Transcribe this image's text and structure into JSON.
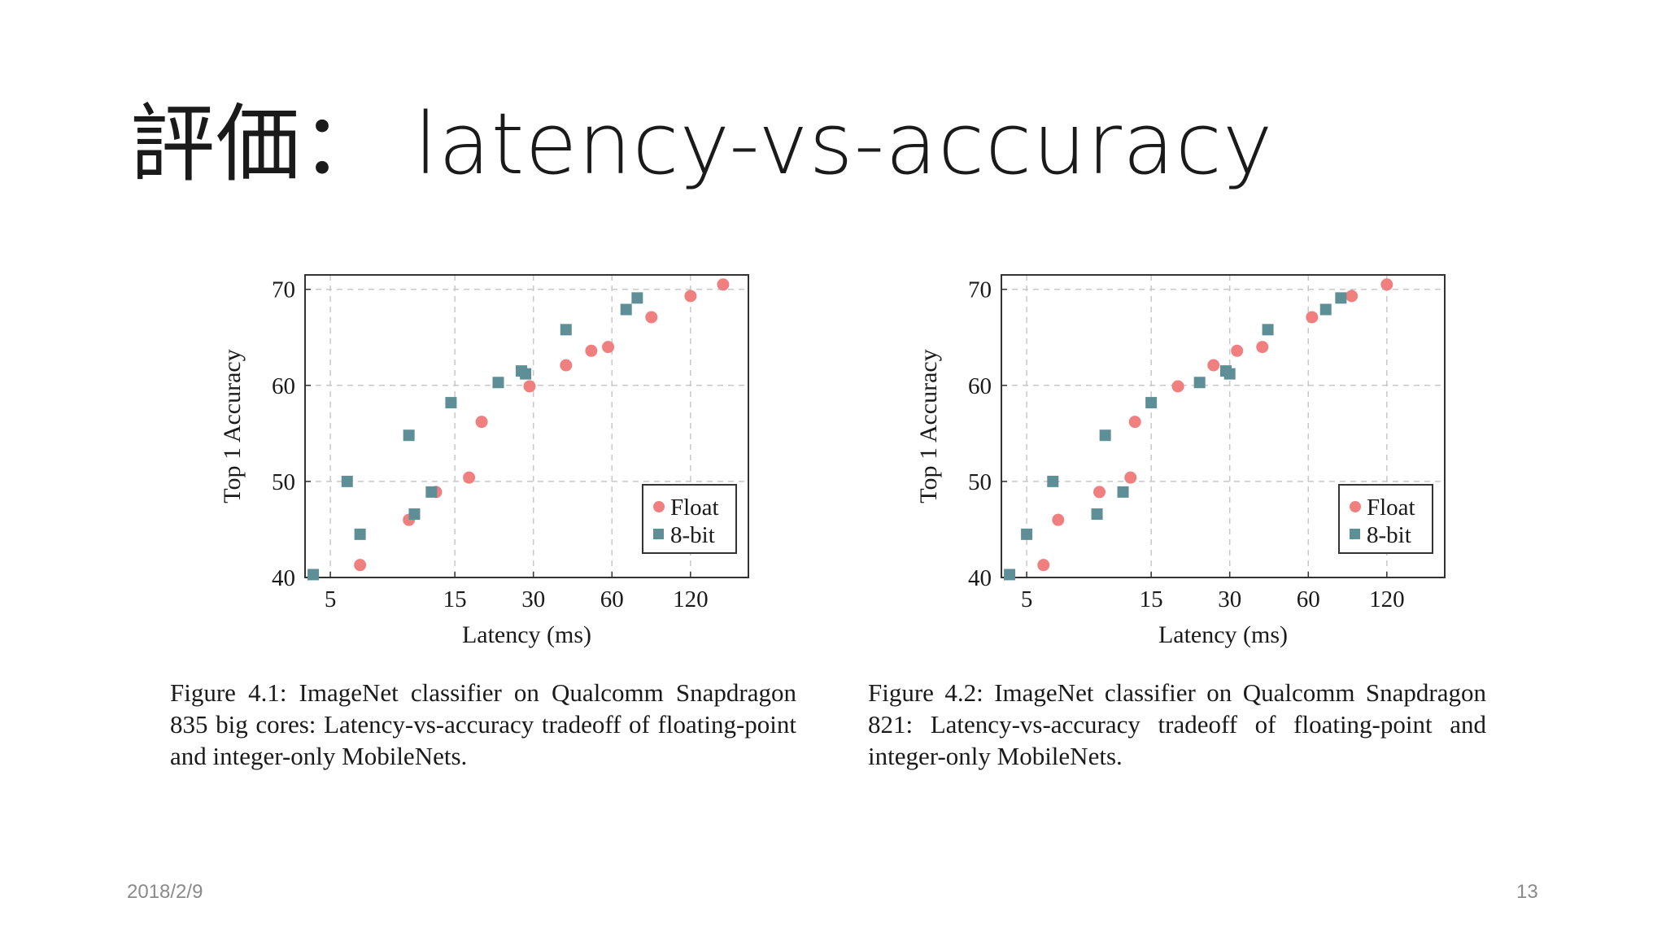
{
  "slide": {
    "title": "評価： latency-vs-accuracy",
    "date": "2018/2/9",
    "page_number": "13"
  },
  "colors": {
    "float": "#f08080",
    "int8": "#5f8f96",
    "grid": "#c8c8c8",
    "frame": "#333333"
  },
  "chart_data": [
    {
      "type": "scatter",
      "xlabel": "Latency (ms)",
      "ylabel": "Top 1 Accuracy",
      "xscale": "log",
      "xlim": [
        4,
        200
      ],
      "ylim": [
        40,
        71.5
      ],
      "xticks": [
        5,
        15,
        30,
        60,
        120
      ],
      "yticks": [
        40,
        50,
        60,
        70
      ],
      "legend_position": "lower-right",
      "series": [
        {
          "name": "Float",
          "marker": "circle",
          "points": [
            [
              6.5,
              41.3
            ],
            [
              10,
              46.0
            ],
            [
              12.7,
              48.9
            ],
            [
              17,
              50.4
            ],
            [
              19,
              56.2
            ],
            [
              29,
              59.9
            ],
            [
              40,
              62.1
            ],
            [
              50,
              63.6
            ],
            [
              58,
              64.0
            ],
            [
              85,
              67.1
            ],
            [
              120,
              69.3
            ],
            [
              160,
              70.5
            ]
          ]
        },
        {
          "name": "8-bit",
          "marker": "square",
          "points": [
            [
              4.3,
              40.3
            ],
            [
              5.8,
              50.0
            ],
            [
              6.5,
              44.5
            ],
            [
              10,
              54.8
            ],
            [
              10.5,
              46.6
            ],
            [
              12.2,
              48.9
            ],
            [
              14.5,
              58.2
            ],
            [
              22,
              60.3
            ],
            [
              27,
              61.5
            ],
            [
              28,
              61.2
            ],
            [
              40,
              65.8
            ],
            [
              68,
              67.9
            ],
            [
              75,
              69.1
            ]
          ]
        }
      ],
      "caption": "Figure 4.1: ImageNet classifier on Qualcomm Snapdragon 835 big cores: Latency-vs-accuracy tradeoff of floating-point and integer-only MobileNets."
    },
    {
      "type": "scatter",
      "xlabel": "Latency (ms)",
      "ylabel": "Top 1 Accuracy",
      "xscale": "log",
      "xlim": [
        4,
        200
      ],
      "ylim": [
        40,
        71.5
      ],
      "xticks": [
        5,
        15,
        30,
        60,
        120
      ],
      "yticks": [
        40,
        50,
        60,
        70
      ],
      "legend_position": "lower-right",
      "series": [
        {
          "name": "Float",
          "marker": "circle",
          "points": [
            [
              5.8,
              41.3
            ],
            [
              6.6,
              46.0
            ],
            [
              9.5,
              48.9
            ],
            [
              12.5,
              50.4
            ],
            [
              13,
              56.2
            ],
            [
              19,
              59.9
            ],
            [
              26,
              62.1
            ],
            [
              32,
              63.6
            ],
            [
              40,
              64.0
            ],
            [
              62,
              67.1
            ],
            [
              88,
              69.3
            ],
            [
              120,
              70.5
            ]
          ]
        },
        {
          "name": "8-bit",
          "marker": "square",
          "points": [
            [
              4.3,
              40.3
            ],
            [
              5,
              44.5
            ],
            [
              6.3,
              50.0
            ],
            [
              9.3,
              46.6
            ],
            [
              10,
              54.8
            ],
            [
              11.7,
              48.9
            ],
            [
              15,
              58.2
            ],
            [
              23,
              60.3
            ],
            [
              29,
              61.5
            ],
            [
              30,
              61.2
            ],
            [
              42,
              65.8
            ],
            [
              70,
              67.9
            ],
            [
              80,
              69.1
            ]
          ]
        }
      ],
      "caption": "Figure 4.2: ImageNet classifier on Qualcomm Snapdragon 821: Latency-vs-accuracy tradeoff of floating-point and integer-only MobileNets."
    }
  ]
}
